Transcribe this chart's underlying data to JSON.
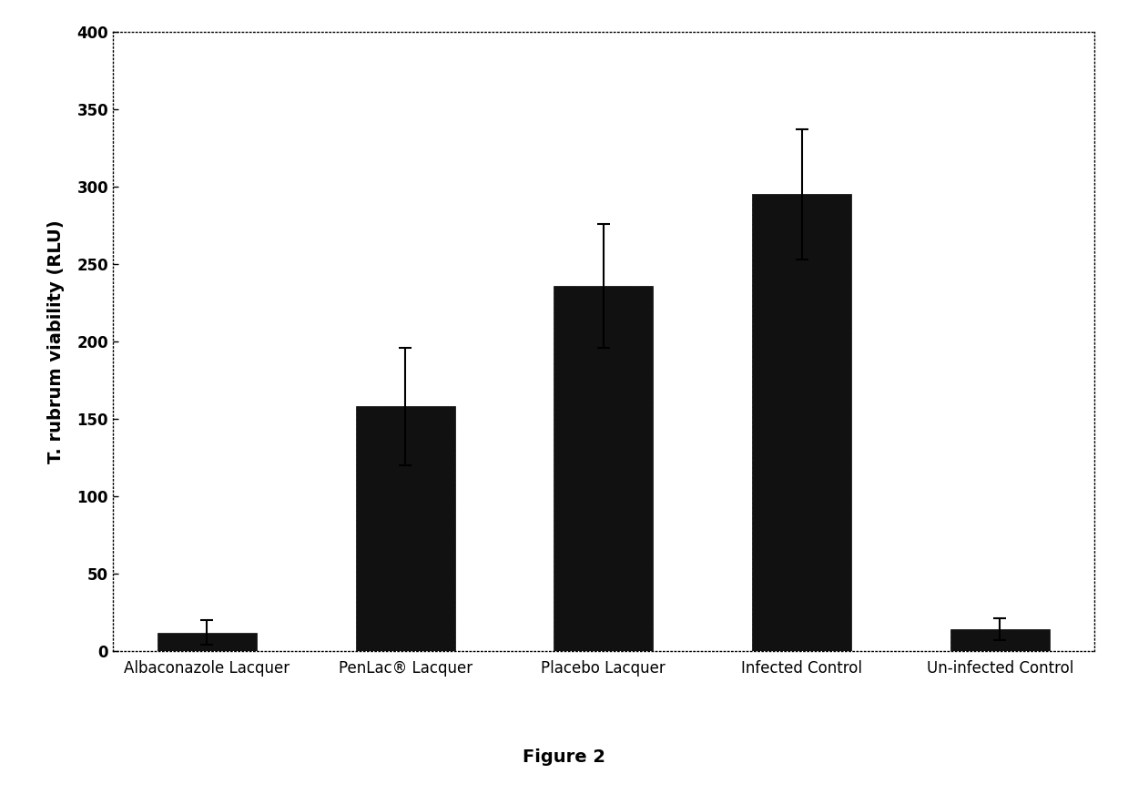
{
  "categories": [
    "Albaconazole Lacquer",
    "PenLac® Lacquer",
    "Placebo Lacquer",
    "Infected Control",
    "Un-infected Control"
  ],
  "values": [
    12,
    158,
    236,
    295,
    14
  ],
  "errors": [
    8,
    38,
    40,
    42,
    7
  ],
  "bar_color": "#111111",
  "ylabel": "T. rubrum viability (RLU)",
  "ylim": [
    0,
    400
  ],
  "yticks": [
    0,
    50,
    100,
    150,
    200,
    250,
    300,
    350,
    400
  ],
  "figure_label": "Figure 2",
  "background_color": "#ffffff",
  "bar_width": 0.5,
  "ylabel_fontsize": 14,
  "tick_fontsize": 12,
  "label_fontsize": 12,
  "figure_label_fontsize": 14
}
